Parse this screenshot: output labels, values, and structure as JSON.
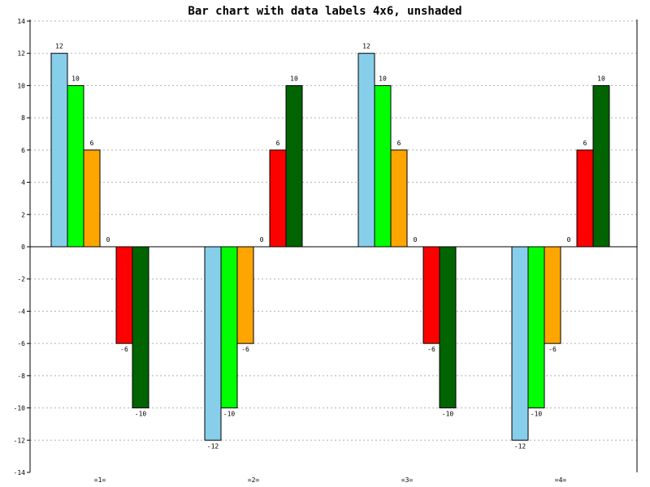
{
  "chart_data": {
    "type": "bar",
    "title": "Bar chart with data labels 4x6, unshaded",
    "xlabel": "",
    "ylabel": "",
    "categories": [
      "=1=",
      "=2=",
      "=3=",
      "=4="
    ],
    "series": [
      {
        "color": "#87ceeb",
        "values": [
          12,
          -12,
          12,
          -12
        ]
      },
      {
        "color": "#00ff00",
        "values": [
          10,
          -10,
          10,
          -10
        ]
      },
      {
        "color": "#ffa500",
        "values": [
          6,
          -6,
          6,
          -6
        ]
      },
      {
        "color": "#ffffff",
        "values": [
          0,
          0,
          0,
          0
        ]
      },
      {
        "color": "#ff0000",
        "values": [
          -6,
          6,
          -6,
          6
        ]
      },
      {
        "color": "#006400",
        "values": [
          -10,
          10,
          -10,
          10
        ]
      }
    ],
    "ylim": [
      -14,
      14
    ],
    "yticks": [
      -14,
      -12,
      -10,
      -8,
      -6,
      -4,
      -2,
      0,
      2,
      4,
      6,
      8,
      10,
      12,
      14
    ],
    "grid": true,
    "data_labels": true,
    "legend": false
  }
}
